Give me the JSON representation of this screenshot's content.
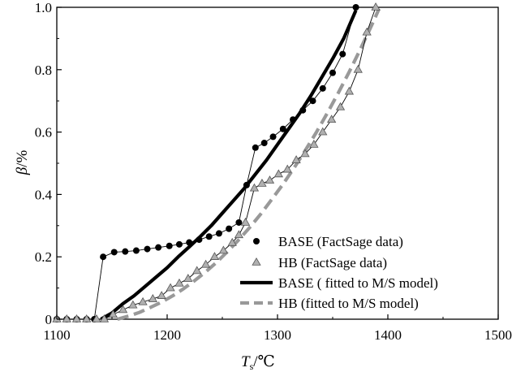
{
  "chart_data": {
    "type": "scatter",
    "xlabel_main": "T",
    "xlabel_sub": "s",
    "xlabel_unit": "/℃",
    "ylabel_symbol": "β",
    "ylabel_unit": "/%",
    "xlim": [
      1100,
      1500
    ],
    "ylim": [
      0,
      1.0
    ],
    "x_ticks": [
      1100,
      1200,
      1300,
      1400,
      1500
    ],
    "y_ticks": [
      0,
      0.2,
      0.4,
      0.6,
      0.8,
      1.0
    ],
    "x_tick_labels": [
      "1100",
      "1200",
      "1300",
      "1400",
      "1500"
    ],
    "y_tick_labels": [
      "0",
      "0.2",
      "0.4",
      "0.6",
      "0.8",
      "1.0"
    ],
    "legend_position": "bottom-right",
    "series": [
      {
        "name": "BASE (FactSage data)",
        "kind": "markers-with-thin-line",
        "marker": "circle",
        "color": "#000000",
        "x": [
          1100,
          1109,
          1118,
          1127,
          1134,
          1142,
          1152,
          1162,
          1172,
          1182,
          1192,
          1202,
          1211,
          1220,
          1229,
          1238,
          1247,
          1256,
          1265,
          1272,
          1280,
          1288,
          1296,
          1305,
          1314,
          1323,
          1332,
          1341,
          1350,
          1359,
          1371
        ],
        "y": [
          0,
          0,
          0,
          0,
          0,
          0.2,
          0.215,
          0.217,
          0.22,
          0.225,
          0.23,
          0.235,
          0.24,
          0.246,
          0.255,
          0.265,
          0.275,
          0.29,
          0.31,
          0.43,
          0.55,
          0.565,
          0.585,
          0.61,
          0.64,
          0.67,
          0.7,
          0.74,
          0.79,
          0.85,
          1.0
        ]
      },
      {
        "name": "HB (FactSage data)",
        "kind": "markers-with-thin-line",
        "marker": "triangle",
        "color": "#b0b0b0",
        "x": [
          1100,
          1109,
          1118,
          1127,
          1136,
          1143,
          1151,
          1160,
          1169,
          1178,
          1187,
          1195,
          1203,
          1211,
          1219,
          1227,
          1235,
          1243,
          1251,
          1259,
          1265,
          1271,
          1279,
          1286,
          1293,
          1301,
          1309,
          1317,
          1325,
          1333,
          1341,
          1349,
          1357,
          1365,
          1373,
          1381,
          1389
        ],
        "y": [
          0,
          0,
          0,
          0,
          0,
          0,
          0.015,
          0.03,
          0.045,
          0.055,
          0.065,
          0.075,
          0.1,
          0.115,
          0.13,
          0.155,
          0.175,
          0.2,
          0.22,
          0.245,
          0.27,
          0.31,
          0.42,
          0.435,
          0.445,
          0.465,
          0.48,
          0.51,
          0.53,
          0.56,
          0.6,
          0.64,
          0.68,
          0.73,
          0.8,
          0.92,
          1.0
        ]
      },
      {
        "name": "BASE ( fitted to M/S model)",
        "kind": "fit-line",
        "style": "solid",
        "color": "#000000",
        "x": [
          1140,
          1150,
          1160,
          1170,
          1180,
          1190,
          1200,
          1210,
          1220,
          1230,
          1240,
          1250,
          1260,
          1270,
          1280,
          1290,
          1300,
          1310,
          1320,
          1330,
          1340,
          1350,
          1360,
          1371
        ],
        "y": [
          0,
          0.02,
          0.05,
          0.075,
          0.105,
          0.135,
          0.165,
          0.2,
          0.232,
          0.265,
          0.3,
          0.34,
          0.38,
          0.42,
          0.465,
          0.51,
          0.56,
          0.61,
          0.66,
          0.715,
          0.775,
          0.835,
          0.9,
          0.99
        ]
      },
      {
        "name": "HB (fitted to M/S model)",
        "kind": "fit-line",
        "style": "dashed",
        "color": "#999999",
        "x": [
          1155,
          1165,
          1175,
          1185,
          1195,
          1205,
          1215,
          1225,
          1235,
          1245,
          1255,
          1265,
          1275,
          1285,
          1295,
          1305,
          1315,
          1325,
          1335,
          1345,
          1355,
          1365,
          1375,
          1385,
          1392
        ],
        "y": [
          0,
          0.01,
          0.022,
          0.038,
          0.055,
          0.075,
          0.098,
          0.124,
          0.152,
          0.183,
          0.218,
          0.255,
          0.295,
          0.338,
          0.385,
          0.433,
          0.485,
          0.54,
          0.598,
          0.66,
          0.725,
          0.793,
          0.865,
          0.94,
          0.995
        ]
      }
    ]
  }
}
